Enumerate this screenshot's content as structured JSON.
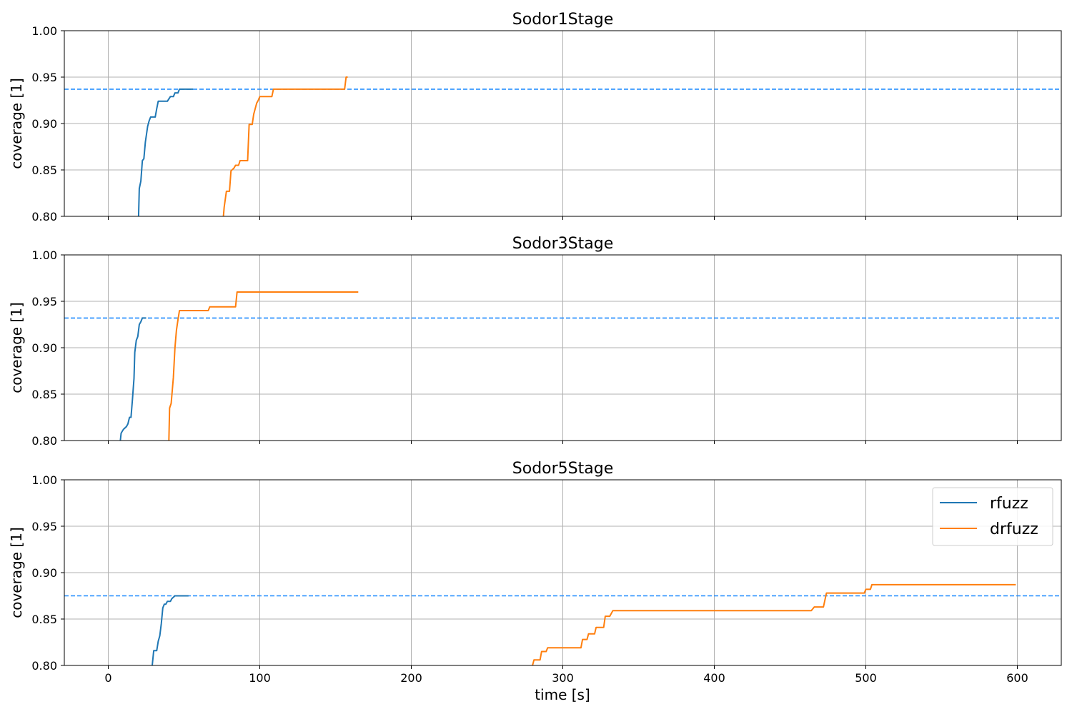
{
  "figure": {
    "shared_xlabel": "time [s]",
    "legend": [
      "rfuzz",
      "drfuzz"
    ]
  },
  "colors": {
    "rfuzz": "#1f77b4",
    "drfuzz": "#ff7f0e",
    "baseline": "#1f8bff",
    "grid": "#b0b0b0"
  },
  "chart_data": [
    {
      "type": "line",
      "title": "Sodor1Stage",
      "xlabel": "",
      "ylabel": "coverage [1]",
      "xlim": [
        -29,
        629
      ],
      "ylim": [
        0.8,
        1.0
      ],
      "xticks": [
        0,
        100,
        200,
        300,
        400,
        500,
        600
      ],
      "yticks": [
        "0.80",
        "0.85",
        "0.90",
        "0.95",
        "1.00"
      ],
      "grid": true,
      "baseline": 0.937,
      "series": [
        {
          "name": "rfuzz",
          "points": [
            [
              20,
              0.8
            ],
            [
              20.5,
              0.83
            ],
            [
              21.5,
              0.838
            ],
            [
              22.5,
              0.86
            ],
            [
              23.5,
              0.862
            ],
            [
              24.5,
              0.88
            ],
            [
              26,
              0.897
            ],
            [
              27,
              0.903
            ],
            [
              28,
              0.907
            ],
            [
              31,
              0.907
            ],
            [
              32,
              0.916
            ],
            [
              33,
              0.924
            ],
            [
              39,
              0.924
            ],
            [
              41,
              0.929
            ],
            [
              43,
              0.929
            ],
            [
              44,
              0.933
            ],
            [
              46,
              0.933
            ],
            [
              47,
              0.937
            ],
            [
              56,
              0.937
            ]
          ]
        },
        {
          "name": "drfuzz",
          "points": [
            [
              76,
              0.8
            ],
            [
              76.5,
              0.81
            ],
            [
              78,
              0.827
            ],
            [
              80,
              0.827
            ],
            [
              81,
              0.849
            ],
            [
              83,
              0.852
            ],
            [
              84,
              0.855
            ],
            [
              86,
              0.855
            ],
            [
              87,
              0.86
            ],
            [
              92,
              0.86
            ],
            [
              93,
              0.899
            ],
            [
              95,
              0.899
            ],
            [
              96,
              0.91
            ],
            [
              98,
              0.922
            ],
            [
              99,
              0.925
            ],
            [
              100,
              0.929
            ],
            [
              108,
              0.929
            ],
            [
              109,
              0.937
            ],
            [
              156,
              0.937
            ],
            [
              157,
              0.95
            ],
            [
              158,
              0.95
            ]
          ]
        }
      ]
    },
    {
      "type": "line",
      "title": "Sodor3Stage",
      "xlabel": "",
      "ylabel": "coverage [1]",
      "xlim": [
        -29,
        629
      ],
      "ylim": [
        0.8,
        1.0
      ],
      "xticks": [
        0,
        100,
        200,
        300,
        400,
        500,
        600
      ],
      "yticks": [
        "0.80",
        "0.85",
        "0.90",
        "0.95",
        "1.00"
      ],
      "grid": true,
      "baseline": 0.932,
      "series": [
        {
          "name": "rfuzz",
          "points": [
            [
              8,
              0.8
            ],
            [
              8.5,
              0.808
            ],
            [
              10,
              0.812
            ],
            [
              12,
              0.815
            ],
            [
              13,
              0.818
            ],
            [
              14,
              0.825
            ],
            [
              15,
              0.825
            ],
            [
              16,
              0.845
            ],
            [
              17,
              0.867
            ],
            [
              17.5,
              0.895
            ],
            [
              18.5,
              0.908
            ],
            [
              19.5,
              0.912
            ],
            [
              20.5,
              0.925
            ],
            [
              21.5,
              0.928
            ],
            [
              22.5,
              0.932
            ],
            [
              25,
              0.932
            ]
          ]
        },
        {
          "name": "drfuzz",
          "points": [
            [
              40,
              0.8
            ],
            [
              40.5,
              0.835
            ],
            [
              41.5,
              0.84
            ],
            [
              43,
              0.868
            ],
            [
              44,
              0.9
            ],
            [
              45,
              0.919
            ],
            [
              46,
              0.93
            ],
            [
              47,
              0.94
            ],
            [
              66,
              0.94
            ],
            [
              67,
              0.944
            ],
            [
              84,
              0.944
            ],
            [
              85,
              0.96
            ],
            [
              165,
              0.96
            ]
          ]
        }
      ]
    },
    {
      "type": "line",
      "title": "Sodor5Stage",
      "xlabel": "time [s]",
      "ylabel": "coverage [1]",
      "xlim": [
        -29,
        629
      ],
      "ylim": [
        0.8,
        1.0
      ],
      "xticks": [
        0,
        100,
        200,
        300,
        400,
        500,
        600
      ],
      "yticks": [
        "0.80",
        "0.85",
        "0.90",
        "0.95",
        "1.00"
      ],
      "grid": true,
      "baseline": 0.875,
      "legend_position": "top-right",
      "series": [
        {
          "name": "rfuzz",
          "points": [
            [
              29,
              0.8
            ],
            [
              30,
              0.816
            ],
            [
              32,
              0.816
            ],
            [
              33,
              0.826
            ],
            [
              34,
              0.832
            ],
            [
              35,
              0.845
            ],
            [
              36,
              0.862
            ],
            [
              37,
              0.866
            ],
            [
              38,
              0.866
            ],
            [
              39,
              0.869
            ],
            [
              41,
              0.869
            ],
            [
              42,
              0.872
            ],
            [
              44,
              0.875
            ],
            [
              53,
              0.875
            ]
          ]
        },
        {
          "name": "drfuzz",
          "points": [
            [
              280,
              0.8
            ],
            [
              281,
              0.806
            ],
            [
              285,
              0.806
            ],
            [
              286,
              0.815
            ],
            [
              289,
              0.815
            ],
            [
              290,
              0.819
            ],
            [
              312,
              0.819
            ],
            [
              313,
              0.828
            ],
            [
              316,
              0.828
            ],
            [
              317,
              0.834
            ],
            [
              321,
              0.834
            ],
            [
              322,
              0.841
            ],
            [
              327,
              0.841
            ],
            [
              328,
              0.853
            ],
            [
              331,
              0.853
            ],
            [
              333,
              0.859
            ],
            [
              464,
              0.859
            ],
            [
              466,
              0.863
            ],
            [
              472,
              0.863
            ],
            [
              474,
              0.878
            ],
            [
              499,
              0.878
            ],
            [
              500,
              0.882
            ],
            [
              503,
              0.882
            ],
            [
              504,
              0.887
            ],
            [
              599,
              0.887
            ]
          ]
        }
      ]
    }
  ]
}
